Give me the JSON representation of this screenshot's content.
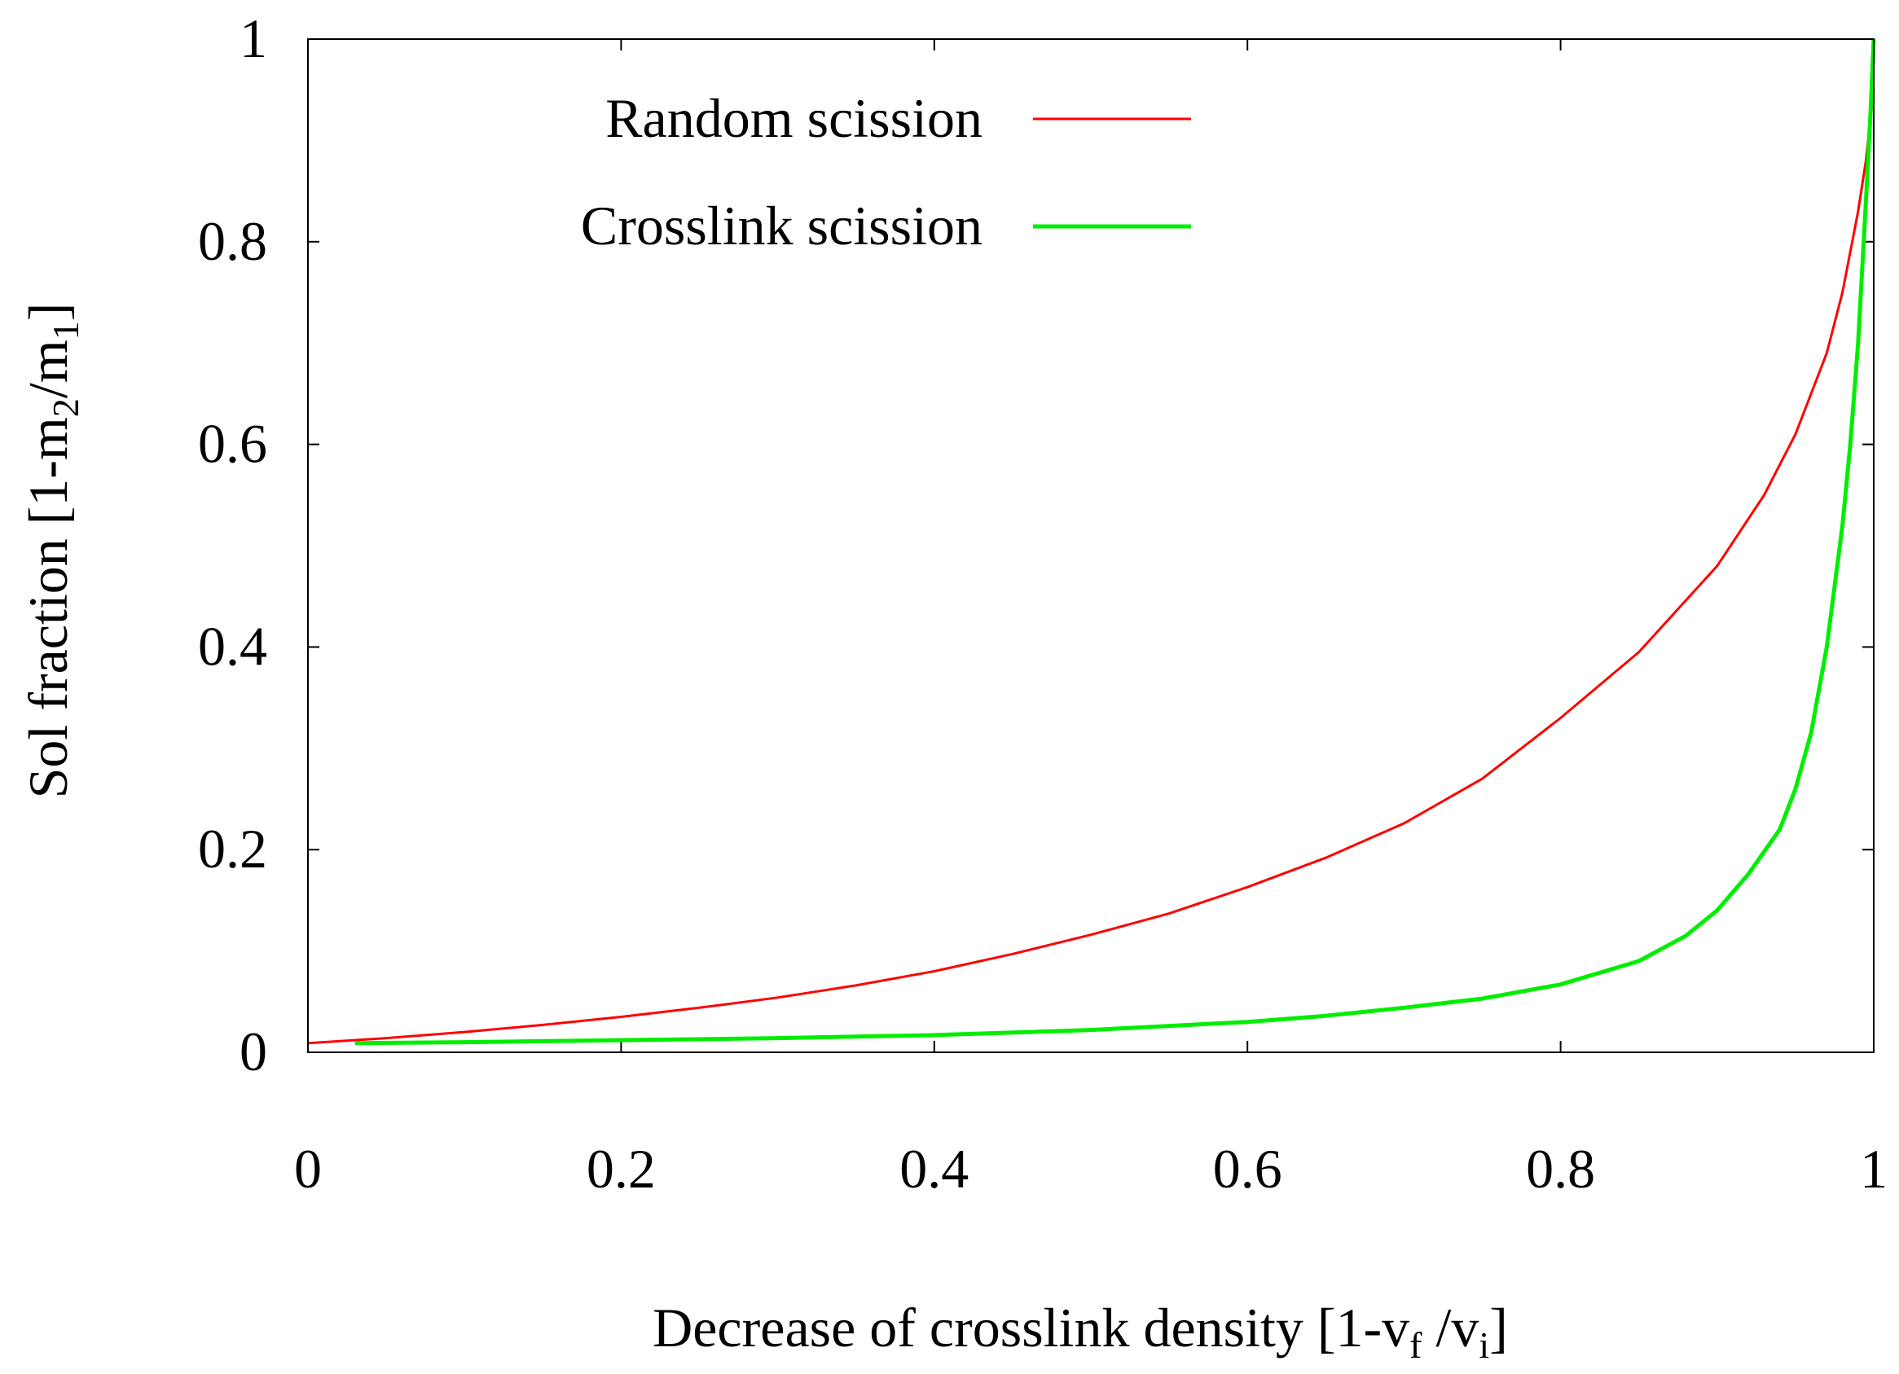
{
  "chart_data": {
    "type": "line",
    "title": "",
    "xlabel": {
      "prefix": "Decrease of crosslink density [1-v",
      "sub1": "f",
      "mid": " /v",
      "sub2": "i",
      "suffix": "]"
    },
    "ylabel": {
      "prefix": "Sol fraction [1-m",
      "sub1": "2",
      "mid": "/m",
      "sub2": "1",
      "suffix": "]"
    },
    "xlim": [
      0,
      1
    ],
    "ylim": [
      0,
      1
    ],
    "xticks": [
      {
        "value": 0,
        "label": "0"
      },
      {
        "value": 0.2,
        "label": "0.2"
      },
      {
        "value": 0.4,
        "label": "0.4"
      },
      {
        "value": 0.6,
        "label": "0.6"
      },
      {
        "value": 0.8,
        "label": "0.8"
      },
      {
        "value": 1,
        "label": "1"
      }
    ],
    "yticks": [
      {
        "value": 0,
        "label": "0"
      },
      {
        "value": 0.2,
        "label": "0.2"
      },
      {
        "value": 0.4,
        "label": "0.4"
      },
      {
        "value": 0.6,
        "label": "0.6"
      },
      {
        "value": 0.8,
        "label": "0.8"
      },
      {
        "value": 1,
        "label": "1"
      }
    ],
    "grid": false,
    "legend_position": "top-right",
    "series": [
      {
        "name": "Random scission",
        "color": "#ff0000",
        "x": [
          0,
          0.05,
          0.1,
          0.15,
          0.2,
          0.25,
          0.3,
          0.35,
          0.4,
          0.45,
          0.5,
          0.55,
          0.6,
          0.65,
          0.7,
          0.75,
          0.8,
          0.85,
          0.9,
          0.93,
          0.95,
          0.97,
          0.98,
          0.99,
          0.995,
          1.0
        ],
        "y": [
          0.009,
          0.014,
          0.02,
          0.027,
          0.035,
          0.044,
          0.054,
          0.066,
          0.08,
          0.097,
          0.116,
          0.137,
          0.163,
          0.192,
          0.226,
          0.27,
          0.33,
          0.395,
          0.48,
          0.55,
          0.61,
          0.69,
          0.75,
          0.83,
          0.88,
          0.95
        ]
      },
      {
        "name": "Crosslink scission",
        "color": "#00ee00",
        "x": [
          0.03,
          0.1,
          0.2,
          0.3,
          0.4,
          0.5,
          0.6,
          0.65,
          0.7,
          0.75,
          0.8,
          0.85,
          0.88,
          0.9,
          0.92,
          0.94,
          0.95,
          0.96,
          0.97,
          0.98,
          0.985,
          0.99,
          0.995,
          0.998,
          1.0
        ],
        "y": [
          0.009,
          0.01,
          0.012,
          0.014,
          0.017,
          0.022,
          0.03,
          0.036,
          0.044,
          0.053,
          0.067,
          0.09,
          0.115,
          0.14,
          0.176,
          0.22,
          0.26,
          0.315,
          0.4,
          0.52,
          0.6,
          0.7,
          0.84,
          0.93,
          1.0
        ]
      }
    ]
  }
}
